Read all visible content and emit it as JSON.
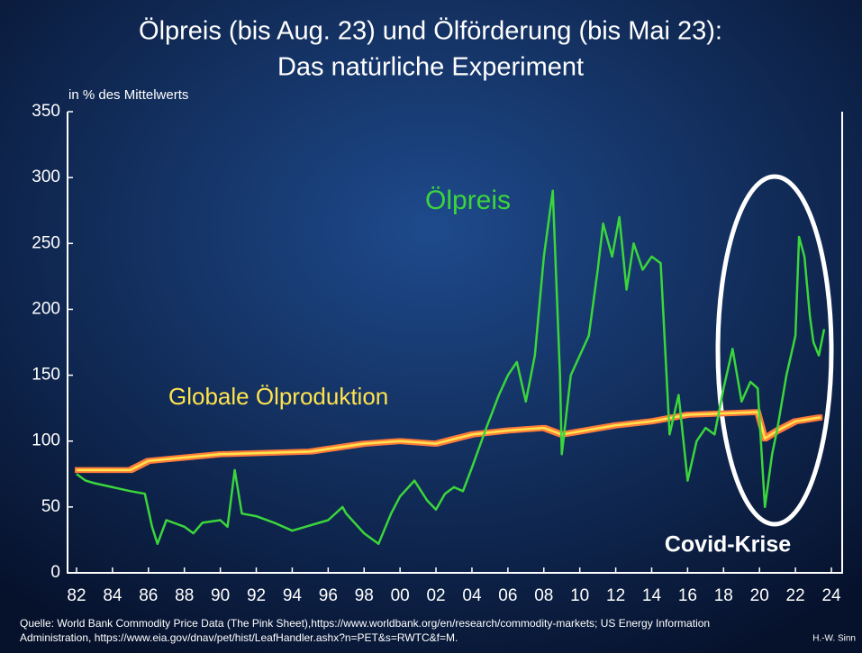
{
  "chart_data": {
    "type": "line",
    "title": [
      "Ölpreis (bis Aug. 23) und Ölförderung (bis Mai 23):",
      "Das natürliche Experiment"
    ],
    "y_label": "in % des Mittelwerts",
    "xlim": [
      1981.5,
      2024.6
    ],
    "ylim": [
      0,
      350
    ],
    "yticks": [
      0,
      50,
      100,
      150,
      200,
      250,
      300,
      350
    ],
    "xticks": [
      {
        "value": 1982,
        "label": "82"
      },
      {
        "value": 1984,
        "label": "84"
      },
      {
        "value": 1986,
        "label": "86"
      },
      {
        "value": 1988,
        "label": "88"
      },
      {
        "value": 1990,
        "label": "90"
      },
      {
        "value": 1992,
        "label": "92"
      },
      {
        "value": 1994,
        "label": "94"
      },
      {
        "value": 1996,
        "label": "96"
      },
      {
        "value": 1998,
        "label": "98"
      },
      {
        "value": 2000,
        "label": "00"
      },
      {
        "value": 2002,
        "label": "02"
      },
      {
        "value": 2004,
        "label": "04"
      },
      {
        "value": 2006,
        "label": "06"
      },
      {
        "value": 2008,
        "label": "08"
      },
      {
        "value": 2010,
        "label": "10"
      },
      {
        "value": 2012,
        "label": "12"
      },
      {
        "value": 2014,
        "label": "14"
      },
      {
        "value": 2016,
        "label": "16"
      },
      {
        "value": 2018,
        "label": "18"
      },
      {
        "value": 2020,
        "label": "20"
      },
      {
        "value": 2022,
        "label": "22"
      },
      {
        "value": 2024,
        "label": "24"
      }
    ],
    "series": [
      {
        "name": "Ölpreis",
        "color": "#3bd63b",
        "x": [
          1982,
          1982.5,
          1983,
          1984,
          1985,
          1985.8,
          1986.2,
          1986.5,
          1987,
          1988,
          1988.5,
          1989,
          1990,
          1990.4,
          1990.8,
          1991.2,
          1992,
          1993,
          1994,
          1995,
          1996,
          1996.8,
          1997,
          1998,
          1998.8,
          1999.5,
          2000,
          2000.8,
          2001.5,
          2002,
          2002.5,
          2003,
          2003.5,
          2004,
          2004.8,
          2005.5,
          2006,
          2006.5,
          2007,
          2007.5,
          2008,
          2008.5,
          2008.9,
          2009,
          2009.5,
          2010,
          2010.5,
          2011,
          2011.3,
          2011.8,
          2012.2,
          2012.6,
          2013,
          2013.5,
          2014,
          2014.5,
          2014.9,
          2015,
          2015.5,
          2016,
          2016.5,
          2017,
          2017.5,
          2018,
          2018.5,
          2019,
          2019.5,
          2019.9,
          2020.3,
          2020.7,
          2021,
          2021.5,
          2022,
          2022.2,
          2022.5,
          2022.8,
          2023,
          2023.3,
          2023.6
        ],
        "values": [
          75,
          70,
          68,
          65,
          62,
          60,
          35,
          22,
          40,
          35,
          30,
          38,
          40,
          35,
          78,
          45,
          43,
          38,
          32,
          36,
          40,
          50,
          45,
          30,
          22,
          45,
          58,
          70,
          55,
          48,
          60,
          65,
          62,
          80,
          110,
          135,
          150,
          160,
          130,
          165,
          240,
          290,
          150,
          90,
          150,
          165,
          180,
          230,
          265,
          240,
          270,
          215,
          250,
          230,
          240,
          235,
          130,
          105,
          135,
          70,
          100,
          110,
          105,
          140,
          170,
          130,
          145,
          140,
          50,
          90,
          110,
          150,
          180,
          255,
          240,
          195,
          175,
          165,
          185
        ]
      },
      {
        "name": "Globale Ölproduktion",
        "color": "#ffe34d",
        "x": [
          1982,
          1985,
          1986,
          1990,
          1995,
          1998,
          2000,
          2002,
          2004,
          2006,
          2008,
          2009,
          2012,
          2014,
          2016,
          2018,
          2019.9,
          2020.3,
          2021,
          2022,
          2023.4
        ],
        "values": [
          78,
          78,
          85,
          90,
          92,
          98,
          100,
          98,
          105,
          108,
          110,
          105,
          112,
          115,
          120,
          121,
          122,
          102,
          108,
          115,
          118
        ]
      }
    ],
    "annotation": "Covid-Krise",
    "source": [
      "Quelle: World Bank Commodity Price Data (The Pink Sheet),https://www.worldbank.org/en/research/commodity-markets; US Energy Information",
      "Administration, https://www.eia.gov/dnav/pet/hist/LeafHandler.ashx?n=PET&s=RWTC&f=M."
    ],
    "author": "H.-W. Sinn"
  }
}
